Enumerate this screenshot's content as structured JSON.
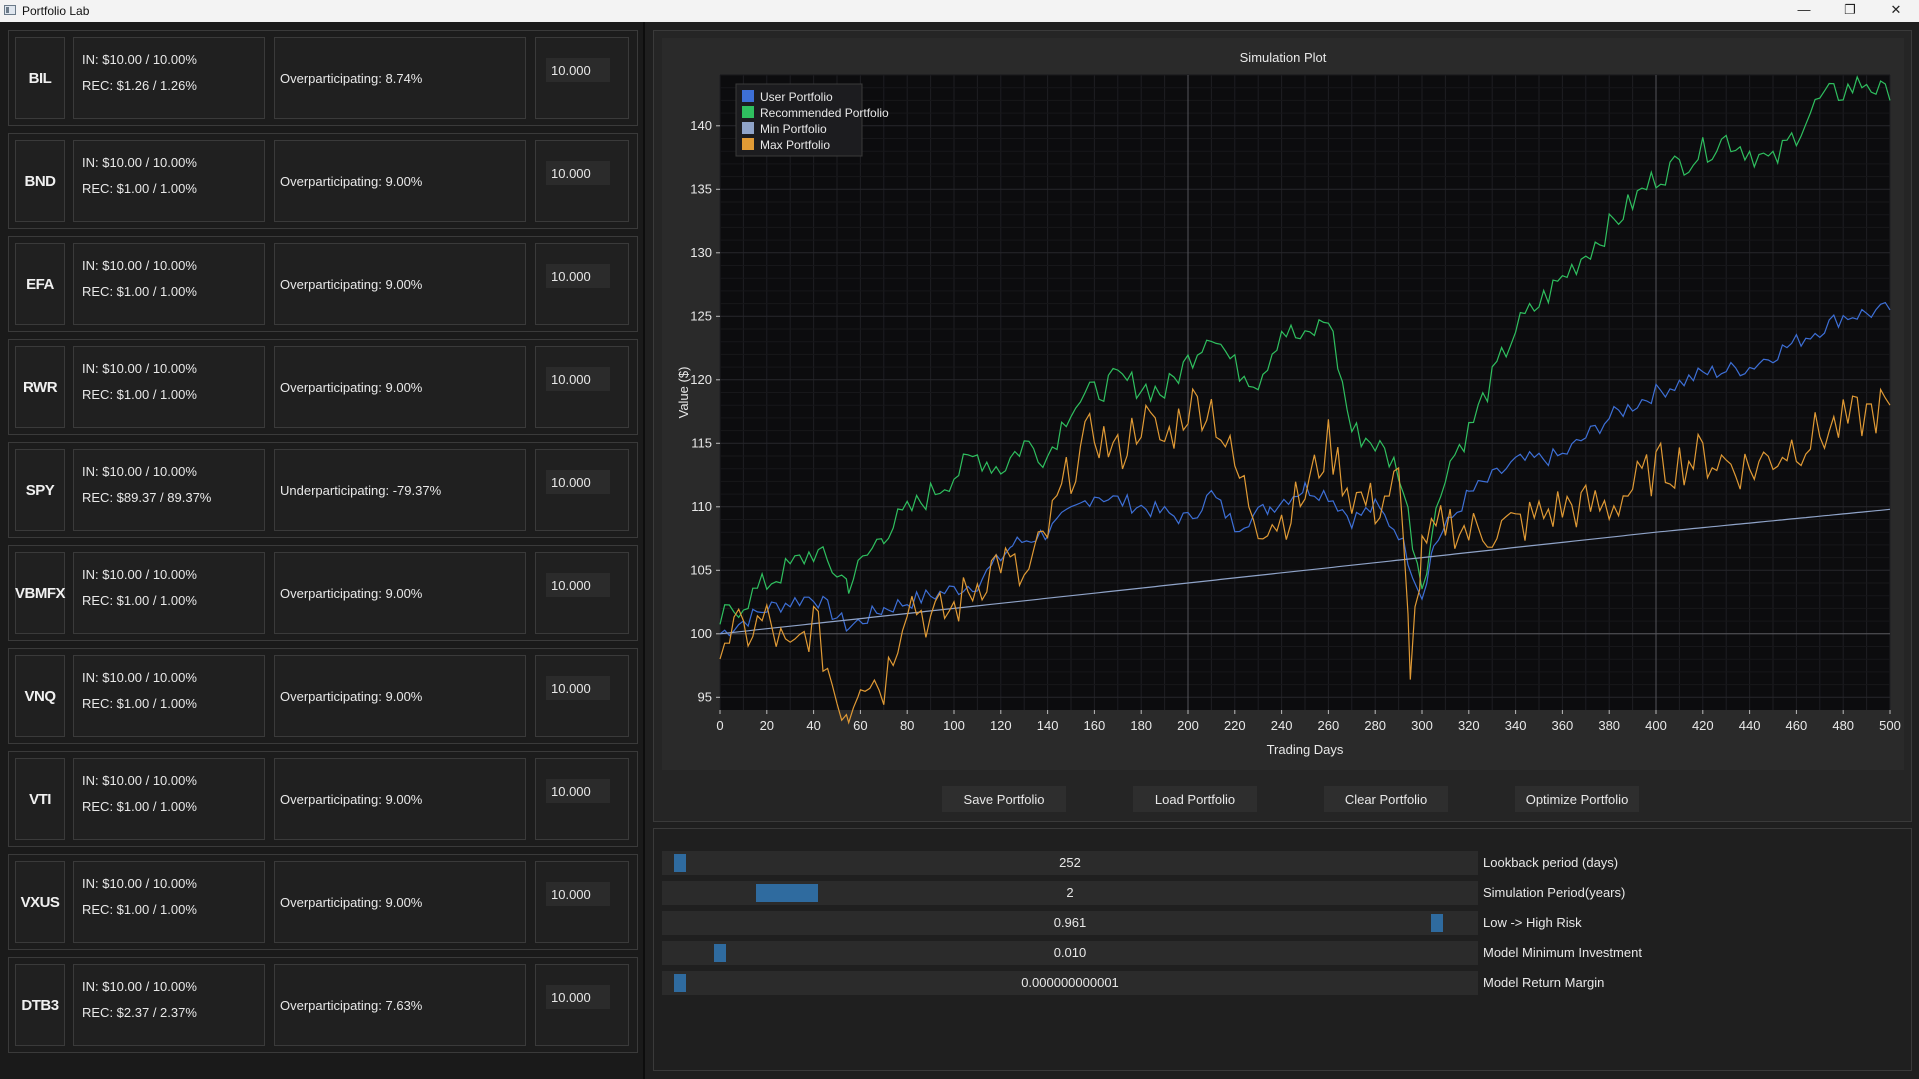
{
  "window": {
    "title": "Portfolio Lab",
    "minimize": "—",
    "maximize": "❐",
    "close": "✕"
  },
  "assets": [
    {
      "ticker": "BIL",
      "in": "IN: $10.00 / 10.00%",
      "rec": "REC: $1.26 / 1.26%",
      "participation": "Overparticipating: 8.74%",
      "value": "10.000"
    },
    {
      "ticker": "BND",
      "in": "IN: $10.00 / 10.00%",
      "rec": "REC: $1.00 / 1.00%",
      "participation": "Overparticipating: 9.00%",
      "value": "10.000"
    },
    {
      "ticker": "EFA",
      "in": "IN: $10.00 / 10.00%",
      "rec": "REC: $1.00 / 1.00%",
      "participation": "Overparticipating: 9.00%",
      "value": "10.000"
    },
    {
      "ticker": "RWR",
      "in": "IN: $10.00 / 10.00%",
      "rec": "REC: $1.00 / 1.00%",
      "participation": "Overparticipating: 9.00%",
      "value": "10.000"
    },
    {
      "ticker": "SPY",
      "in": "IN: $10.00 / 10.00%",
      "rec": "REC: $89.37 / 89.37%",
      "participation": "Underparticipating: -79.37%",
      "value": "10.000"
    },
    {
      "ticker": "VBMFX",
      "in": "IN: $10.00 / 10.00%",
      "rec": "REC: $1.00 / 1.00%",
      "participation": "Overparticipating: 9.00%",
      "value": "10.000"
    },
    {
      "ticker": "VNQ",
      "in": "IN: $10.00 / 10.00%",
      "rec": "REC: $1.00 / 1.00%",
      "participation": "Overparticipating: 9.00%",
      "value": "10.000"
    },
    {
      "ticker": "VTI",
      "in": "IN: $10.00 / 10.00%",
      "rec": "REC: $1.00 / 1.00%",
      "participation": "Overparticipating: 9.00%",
      "value": "10.000"
    },
    {
      "ticker": "VXUS",
      "in": "IN: $10.00 / 10.00%",
      "rec": "REC: $1.00 / 1.00%",
      "participation": "Overparticipating: 9.00%",
      "value": "10.000"
    },
    {
      "ticker": "DTB3",
      "in": "IN: $10.00 / 10.00%",
      "rec": "REC: $2.37 / 2.37%",
      "participation": "Overparticipating: 7.63%",
      "value": "10.000"
    }
  ],
  "chart_data": {
    "type": "line",
    "title": "Simulation Plot",
    "xlabel": "Trading Days",
    "ylabel": "Value ($)",
    "xlim": [
      0,
      500
    ],
    "ylim": [
      94,
      144
    ],
    "xticks": [
      0,
      20,
      40,
      60,
      80,
      100,
      120,
      140,
      160,
      180,
      200,
      220,
      240,
      260,
      280,
      300,
      320,
      340,
      360,
      380,
      400,
      420,
      440,
      460,
      480,
      500
    ],
    "yticks": [
      95,
      100,
      105,
      110,
      115,
      120,
      125,
      130,
      135,
      140
    ],
    "grid": true,
    "legend_position": "top-left",
    "series": [
      {
        "name": "User Portfolio",
        "color": "#3d6fd6",
        "x": [
          0,
          20,
          40,
          55,
          70,
          90,
          110,
          125,
          140,
          160,
          180,
          200,
          210,
          220,
          235,
          250,
          260,
          270,
          280,
          290,
          300,
          305,
          320,
          340,
          360,
          380,
          400,
          420,
          440,
          460,
          480,
          500
        ],
        "y": [
          100,
          102,
          103,
          100.5,
          102,
          103,
          104,
          107,
          108,
          111,
          110,
          109,
          111,
          108.5,
          110,
          111.5,
          111,
          109,
          110,
          108,
          103,
          107,
          111,
          113.5,
          114,
          117,
          119,
          120.5,
          121,
          123,
          125,
          125.5
        ]
      },
      {
        "name": "Recommended Portfolio",
        "color": "#2fbf5f",
        "x": [
          0,
          20,
          40,
          55,
          70,
          90,
          110,
          120,
          130,
          140,
          150,
          170,
          190,
          200,
          210,
          220,
          230,
          240,
          250,
          260,
          270,
          280,
          290,
          300,
          310,
          320,
          340,
          360,
          380,
          400,
          420,
          430,
          450,
          470,
          490,
          500
        ],
        "y": [
          101,
          104,
          106.5,
          104,
          108,
          111,
          114,
          113,
          115,
          114,
          118,
          120,
          119,
          121.5,
          124,
          121,
          120,
          124,
          123,
          125,
          116,
          115,
          113,
          104,
          113,
          116,
          124,
          128,
          132,
          136,
          138,
          139,
          137,
          142,
          143.5,
          142
        ]
      },
      {
        "name": "Min Portfolio",
        "color": "#8fa3c8",
        "x": [
          0,
          100,
          200,
          300,
          400,
          500
        ],
        "y": [
          100,
          102,
          104,
          106,
          108,
          109.8
        ]
      },
      {
        "name": "Max Portfolio",
        "color": "#e09a35",
        "x": [
          0,
          10,
          20,
          30,
          40,
          50,
          55,
          60,
          70,
          80,
          90,
          100,
          110,
          120,
          130,
          140,
          150,
          160,
          170,
          180,
          190,
          200,
          210,
          220,
          230,
          240,
          250,
          260,
          270,
          280,
          290,
          295,
          300,
          310,
          320,
          340,
          360,
          380,
          400,
          420,
          440,
          460,
          480,
          500
        ],
        "y": [
          100,
          100,
          101,
          98,
          101,
          95,
          94,
          97,
          96,
          103,
          101,
          102,
          104,
          106,
          104,
          108,
          113,
          116,
          114,
          117,
          115,
          118,
          118,
          113,
          109,
          109,
          111,
          115,
          111,
          110,
          112,
          98,
          106,
          109,
          108,
          108.5,
          110,
          110,
          113,
          114,
          113,
          115,
          116.5,
          118
        ]
      }
    ]
  },
  "buttons": {
    "save": "Save Portfolio",
    "load": "Load Portfolio",
    "clear": "Clear Portfolio",
    "optimize": "Optimize Portfolio"
  },
  "sliders": [
    {
      "value": "252",
      "label": "Lookback period (days)",
      "position": 0.01
    },
    {
      "value": "2",
      "label": "Simulation Period(years)",
      "position": 0.12
    },
    {
      "value": "0.961",
      "label": "Low -> High Risk",
      "position": 0.961
    },
    {
      "value": "0.010",
      "label": "Model Minimum Investment",
      "position": 0.06
    },
    {
      "value": "0.000000000001",
      "label": "Model Return Margin",
      "position": 0.01
    }
  ]
}
